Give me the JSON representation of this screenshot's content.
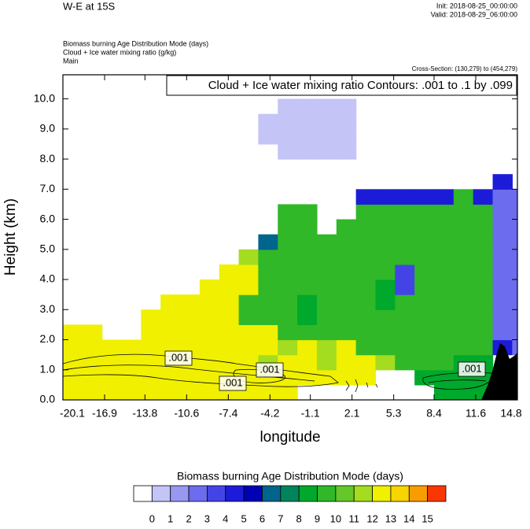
{
  "chart_data": {
    "type": "contour",
    "title": "W-E at 15S",
    "init": "Init: 2018-08-25_00:00:00",
    "valid": "Valid: 2018-08-29_06:00:00",
    "fields": [
      "Biomass burning Age Distribution Mode   (days)",
      "Cloud + Ice water mixing ratio   (g/kg)",
      "Main"
    ],
    "cross_section": "Cross-Section: (130,279) to (454,279)",
    "contour_title": "Cloud + Ice water mixing ratio Contours: .001 to .1 by .099",
    "contour_labels": [
      ".001",
      ".001",
      ".001",
      ".001"
    ],
    "xlabel": "longitude",
    "ylabel": "Height (km)",
    "xlim": [
      -20.1,
      14.8
    ],
    "ylim": [
      0,
      10.8
    ],
    "xticks": [
      -20.1,
      -16.9,
      -13.8,
      -10.6,
      -7.4,
      -4.2,
      -1.1,
      2.1,
      5.3,
      8.4,
      11.6,
      14.8
    ],
    "yticks": [
      {
        "value": 0,
        "label": "0.0"
      },
      {
        "value": 1,
        "label": "1.0"
      },
      {
        "value": 2,
        "label": "2.0"
      },
      {
        "value": 3,
        "label": "3.0"
      },
      {
        "value": 4,
        "label": "4.0"
      },
      {
        "value": 5,
        "label": "5.0"
      },
      {
        "value": 6,
        "label": "6.0"
      },
      {
        "value": 7,
        "label": "7.0"
      },
      {
        "value": 8,
        "label": "8.0"
      },
      {
        "value": 9,
        "label": "9.0"
      },
      {
        "value": 10,
        "label": "10.0"
      }
    ],
    "x": [
      -19.35,
      -17.85,
      -16.35,
      -14.85,
      -13.35,
      -11.85,
      -10.35,
      -8.85,
      -7.35,
      -5.85,
      -4.35,
      -2.85,
      -1.35,
      0.15,
      1.65,
      3.15,
      4.65,
      6.15,
      7.65,
      9.15,
      10.65,
      12.15,
      13.65,
      15.15
    ],
    "heights": [
      0.25,
      0.75,
      1.25,
      1.75,
      2.25,
      2.75,
      3.25,
      3.75,
      4.25,
      4.75,
      5.25,
      5.75,
      6.25,
      6.75,
      7.25,
      7.75,
      8.25,
      8.75,
      9.25,
      9.75,
      10.25,
      10.75
    ],
    "field": [
      [
        12,
        12,
        12,
        12,
        12,
        12,
        12,
        12,
        12,
        12,
        12,
        12,
        null,
        null,
        null,
        null,
        null,
        null,
        null,
        8,
        8,
        8,
        null,
        null
      ],
      [
        12,
        12,
        12,
        12,
        12,
        12,
        12,
        12,
        12,
        12,
        12,
        12,
        12,
        12,
        12,
        12,
        null,
        null,
        8,
        8,
        8,
        8,
        null,
        null
      ],
      [
        12,
        12,
        12,
        12,
        12,
        12,
        12,
        12,
        12,
        12,
        11,
        12,
        12,
        11,
        12,
        12,
        11,
        9,
        9,
        9,
        8,
        8,
        null,
        null
      ],
      [
        12,
        12,
        12,
        12,
        12,
        12,
        12,
        12,
        12,
        12,
        12,
        11,
        12,
        11,
        12,
        9,
        9,
        9,
        9,
        9,
        9,
        9,
        4,
        2
      ],
      [
        12,
        12,
        null,
        null,
        12,
        12,
        12,
        12,
        12,
        12,
        12,
        9,
        9,
        9,
        9,
        9,
        9,
        9,
        9,
        9,
        9,
        9,
        2,
        2
      ],
      [
        null,
        null,
        null,
        null,
        12,
        12,
        12,
        12,
        12,
        9,
        9,
        9,
        8,
        9,
        9,
        9,
        9,
        9,
        9,
        9,
        9,
        9,
        2,
        2
      ],
      [
        null,
        null,
        null,
        null,
        null,
        12,
        12,
        12,
        12,
        9,
        9,
        9,
        8,
        9,
        9,
        9,
        8,
        9,
        9,
        9,
        9,
        9,
        2,
        2
      ],
      [
        null,
        null,
        null,
        null,
        null,
        null,
        null,
        12,
        12,
        12,
        9,
        9,
        9,
        9,
        9,
        9,
        8,
        3,
        9,
        9,
        9,
        9,
        2,
        2
      ],
      [
        null,
        null,
        null,
        null,
        null,
        null,
        null,
        null,
        12,
        12,
        9,
        9,
        9,
        9,
        9,
        9,
        9,
        3,
        9,
        9,
        9,
        9,
        2,
        2
      ],
      [
        null,
        null,
        null,
        null,
        null,
        null,
        null,
        null,
        null,
        11,
        9,
        9,
        9,
        9,
        9,
        9,
        9,
        9,
        9,
        9,
        9,
        9,
        2,
        2
      ],
      [
        null,
        null,
        null,
        null,
        null,
        null,
        null,
        null,
        null,
        null,
        6,
        9,
        9,
        9,
        9,
        9,
        9,
        9,
        9,
        9,
        9,
        9,
        2,
        2
      ],
      [
        null,
        null,
        null,
        null,
        null,
        null,
        null,
        null,
        null,
        null,
        null,
        9,
        9,
        null,
        9,
        9,
        9,
        9,
        9,
        9,
        9,
        9,
        2,
        2
      ],
      [
        null,
        null,
        null,
        null,
        null,
        null,
        null,
        null,
        null,
        null,
        null,
        9,
        9,
        null,
        null,
        9,
        9,
        9,
        9,
        9,
        9,
        9,
        2,
        2
      ],
      [
        null,
        null,
        null,
        null,
        null,
        null,
        null,
        null,
        null,
        null,
        null,
        null,
        null,
        null,
        null,
        4,
        4,
        4,
        4,
        4,
        9,
        4,
        2,
        2
      ],
      [
        null,
        null,
        null,
        null,
        null,
        null,
        null,
        null,
        null,
        null,
        null,
        null,
        null,
        null,
        null,
        null,
        null,
        null,
        null,
        null,
        null,
        null,
        4,
        null
      ],
      [
        null,
        null,
        null,
        null,
        null,
        null,
        null,
        null,
        null,
        null,
        null,
        null,
        null,
        null,
        null,
        null,
        null,
        null,
        null,
        null,
        null,
        null,
        null,
        null
      ],
      [
        null,
        null,
        null,
        null,
        null,
        null,
        null,
        null,
        null,
        null,
        null,
        0,
        0,
        0,
        0,
        null,
        null,
        null,
        null,
        null,
        null,
        null,
        null,
        null
      ],
      [
        null,
        null,
        null,
        null,
        null,
        null,
        null,
        null,
        null,
        null,
        0,
        0,
        0,
        0,
        0,
        null,
        null,
        null,
        null,
        null,
        null,
        null,
        null,
        null
      ],
      [
        null,
        null,
        null,
        null,
        null,
        null,
        null,
        null,
        null,
        null,
        0,
        0,
        0,
        0,
        0,
        null,
        null,
        null,
        null,
        null,
        null,
        null,
        null,
        null
      ],
      [
        null,
        null,
        null,
        null,
        null,
        null,
        null,
        null,
        null,
        null,
        null,
        0,
        0,
        0,
        0,
        null,
        null,
        null,
        null,
        null,
        null,
        null,
        null,
        null
      ],
      [
        null,
        null,
        null,
        null,
        null,
        null,
        null,
        null,
        null,
        null,
        null,
        null,
        null,
        null,
        null,
        null,
        null,
        null,
        null,
        null,
        null,
        null,
        null,
        null
      ],
      [
        null,
        null,
        null,
        null,
        null,
        null,
        null,
        null,
        null,
        null,
        null,
        null,
        null,
        null,
        null,
        null,
        null,
        null,
        null,
        null,
        null,
        null,
        null,
        null
      ]
    ],
    "colorbar_title": "Biomass burning Age Distribution Mode  (days)",
    "levels": [
      0,
      1,
      2,
      3,
      4,
      5,
      6,
      7,
      8,
      9,
      10,
      11,
      12,
      13,
      14,
      15
    ],
    "colors": [
      "#ffffff",
      "#c4c4f6",
      "#9898f2",
      "#6c6cee",
      "#4444e6",
      "#1c1cd8",
      "#0000b4",
      "#00648c",
      "#00845c",
      "#00a82c",
      "#30b828",
      "#64c828",
      "#a4dc20",
      "#f0f000",
      "#f8d400",
      "#f89c00",
      "#f83800"
    ]
  }
}
